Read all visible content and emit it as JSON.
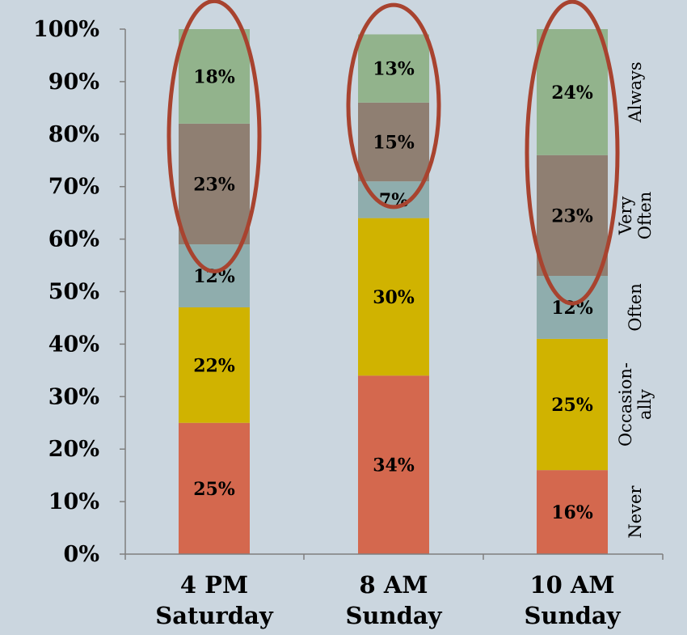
{
  "chart_data": {
    "type": "bar",
    "stacked": true,
    "categories": [
      [
        "4 PM",
        "Saturday"
      ],
      [
        "8 AM",
        "Sunday"
      ],
      [
        "10 AM",
        "Sunday"
      ]
    ],
    "ylim": [
      0,
      100
    ],
    "yticks": [
      "0%",
      "10%",
      "20%",
      "30%",
      "40%",
      "50%",
      "60%",
      "70%",
      "80%",
      "90%",
      "100%"
    ],
    "series": [
      {
        "name": "Never",
        "legend_lines": [
          "Never"
        ],
        "color": "#d4684e",
        "values": [
          25,
          34,
          16
        ],
        "labels": [
          "25%",
          "34%",
          "16%"
        ]
      },
      {
        "name": "Occasionally",
        "legend_lines": [
          "Occasion-",
          "ally"
        ],
        "color": "#d0b300",
        "values": [
          22,
          30,
          25
        ],
        "labels": [
          "22%",
          "30%",
          "25%"
        ]
      },
      {
        "name": "Often",
        "legend_lines": [
          "Often"
        ],
        "color": "#8fadad",
        "values": [
          12,
          7,
          12
        ],
        "labels": [
          "12%",
          "7%",
          "12%"
        ]
      },
      {
        "name": "Very Often",
        "legend_lines": [
          "Very",
          "Often"
        ],
        "color": "#8f7f72",
        "values": [
          23,
          15,
          23
        ],
        "labels": [
          "23%",
          "15%",
          "23%"
        ]
      },
      {
        "name": "Always",
        "legend_lines": [
          "Always"
        ],
        "color": "#92b38c",
        "values": [
          18,
          13,
          24
        ],
        "labels": [
          "18%",
          "13%",
          "24%"
        ]
      }
    ],
    "highlight": {
      "shape": "ellipse",
      "color": "#a8432f",
      "series": [
        "Very Often",
        "Always"
      ]
    },
    "grid": false,
    "legend_position": "right (rotated labels)"
  }
}
